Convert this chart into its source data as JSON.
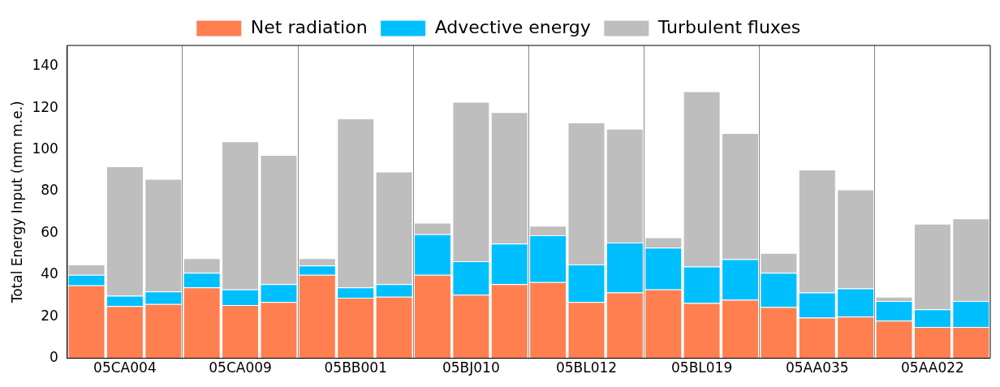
{
  "chart_data": {
    "type": "bar",
    "stacked": true,
    "ylabel": "Total Energy Input (mm m.e.)",
    "categories": [
      null,
      "05CA004",
      null,
      null,
      "05CA009",
      null,
      null,
      "05BB001",
      null,
      null,
      "05BJ010",
      null,
      null,
      "05BL012",
      null,
      null,
      "05BL019",
      null,
      null,
      "05AA035",
      null,
      null,
      "05AA022",
      null
    ],
    "series": [
      {
        "name": "Net radiation",
        "color": "#ff7f50",
        "values": [
          35,
          25,
          26,
          34,
          25.5,
          27,
          40,
          29,
          29.5,
          40,
          30.5,
          35.5,
          36.5,
          27,
          31.5,
          33,
          26.5,
          28,
          24.5,
          19.5,
          20,
          18,
          15,
          15
        ]
      },
      {
        "name": "Advective energy",
        "color": "#00bfff",
        "values": [
          5,
          5,
          6,
          7,
          7.5,
          8.5,
          4.5,
          5,
          6,
          19.5,
          16,
          19.5,
          22.5,
          18,
          24,
          20,
          17.5,
          19.5,
          16.5,
          12,
          13.5,
          9.5,
          8.5,
          12.5
        ]
      },
      {
        "name": "Turbulent fluxes",
        "color": "#bebebe",
        "values": [
          5,
          62,
          54,
          7,
          71,
          62,
          3.5,
          81,
          54,
          5.5,
          76.5,
          63,
          4.5,
          68,
          54.5,
          5,
          84,
          60.5,
          9.5,
          59,
          47.5,
          2,
          41,
          39.5
        ]
      }
    ],
    "ylim": [
      0,
      150
    ],
    "yticks": [
      0,
      20,
      40,
      60,
      80,
      100,
      120,
      140
    ],
    "grid": "x",
    "legend": "top"
  }
}
